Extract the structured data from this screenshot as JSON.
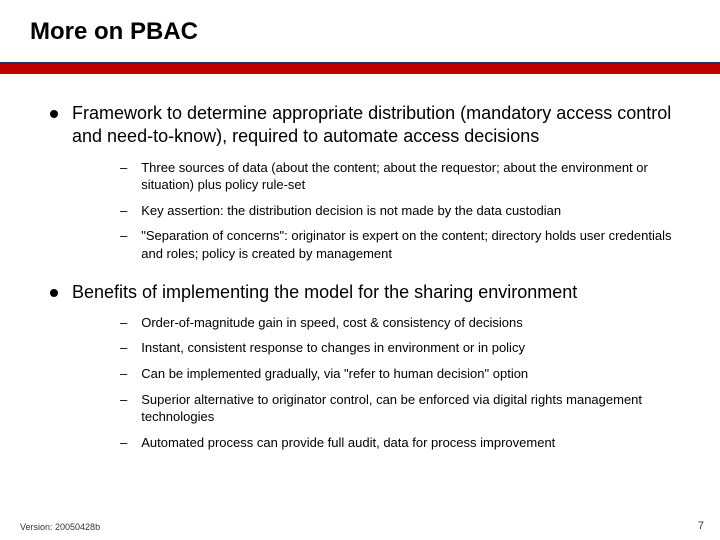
{
  "slide": {
    "title": "More on PBAC",
    "colors": {
      "divider_thin": "#17375e",
      "divider_thick": "#c00000",
      "bullet_dot": "#000000",
      "text": "#000000",
      "background": "#ffffff"
    },
    "typography": {
      "title_fontsize": 24,
      "l1_fontsize": 18,
      "l2_fontsize": 13,
      "footer_fontsize": 9,
      "pagenum_fontsize": 11,
      "font_family": "Arial"
    },
    "bullets": [
      {
        "text": "Framework to determine appropriate distribution (mandatory access control and need-to-know), required to automate access decisions",
        "sub": [
          "Three sources of data (about the content; about the requestor; about the environment or situation) plus policy rule-set",
          "Key assertion: the distribution decision is not made by the data custodian",
          "\"Separation of concerns\": originator is expert on the content;  directory holds user credentials and roles; policy is created by management"
        ]
      },
      {
        "text": "Benefits of implementing the model for the sharing environment",
        "sub": [
          "Order-of-magnitude gain in speed, cost & consistency of decisions",
          "Instant, consistent response to changes in environment or in policy",
          "Can be implemented gradually, via \"refer to human decision\" option",
          "Superior alternative to originator control, can be enforced via digital rights management technologies",
          "Automated process can provide full audit, data for process improvement"
        ]
      }
    ],
    "footer": {
      "version_label": "Version: 20050428b",
      "page_number": "7"
    }
  }
}
